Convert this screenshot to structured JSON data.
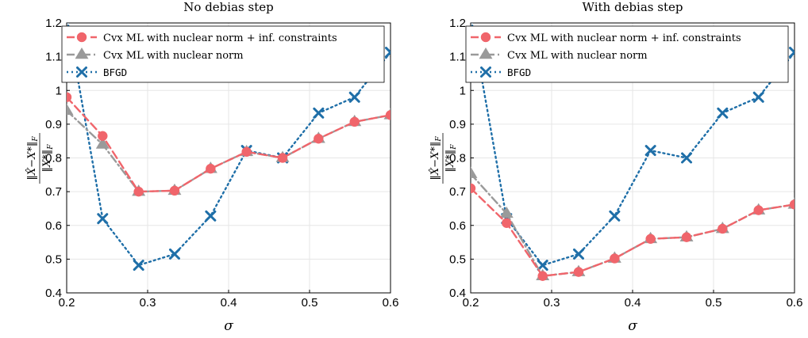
{
  "chart_data": [
    {
      "type": "line",
      "title": "No debias step",
      "xlabel": "σ",
      "ylabel": "‖X̂−X*‖F / ‖X*‖F",
      "xlim": [
        0.2,
        0.6
      ],
      "ylim": [
        0.4,
        1.2
      ],
      "xticks": [
        "0.2",
        "0.3",
        "0.4",
        "0.5",
        "0.6"
      ],
      "yticks": [
        "0.4",
        "0.5",
        "0.6",
        "0.7",
        "0.8",
        "0.9",
        "1",
        "1.2"
      ],
      "grid": true,
      "legend_position": "top-right",
      "x": [
        0.2,
        0.2444,
        0.2889,
        0.3333,
        0.3778,
        0.4222,
        0.4667,
        0.5111,
        0.5556,
        0.6
      ],
      "series": [
        {
          "name": "Cvx ML with nuclear norm + inf. constraints",
          "color": "#f0656b",
          "marker": "circle",
          "dash": "dashed",
          "values": [
            0.98,
            0.865,
            0.7,
            0.703,
            0.768,
            0.818,
            0.8,
            0.857,
            0.907,
            0.927
          ]
        },
        {
          "name": "Cvx ML with nuclear norm",
          "color": "#9a9a9a",
          "marker": "triangle",
          "dash": "dashdot",
          "values": [
            0.94,
            0.84,
            0.7,
            0.703,
            0.768,
            0.818,
            0.8,
            0.857,
            0.907,
            0.927
          ]
        },
        {
          "name": "BFGD",
          "color": "#1f6fa8",
          "marker": "x",
          "dash": "dotted",
          "values": [
            1.22,
            0.62,
            0.482,
            0.515,
            0.628,
            0.822,
            0.8,
            0.933,
            0.98,
            1.113
          ]
        }
      ]
    },
    {
      "type": "line",
      "title": "With debias step",
      "xlabel": "σ",
      "ylabel": "‖X̂−X*‖F / ‖X*‖F",
      "xlim": [
        0.2,
        0.6
      ],
      "ylim": [
        0.4,
        1.2
      ],
      "xticks": [
        "0.2",
        "0.3",
        "0.4",
        "0.5",
        "0.6"
      ],
      "yticks": [
        "0.4",
        "0.5",
        "0.6",
        "0.7",
        "0.8",
        "0.9",
        "1",
        "1.2"
      ],
      "grid": true,
      "legend_position": "top-right",
      "x": [
        0.2,
        0.2444,
        0.2889,
        0.3333,
        0.3778,
        0.4222,
        0.4667,
        0.5111,
        0.5556,
        0.6
      ],
      "series": [
        {
          "name": "Cvx ML with nuclear norm + inf. constraints",
          "color": "#f0656b",
          "marker": "circle",
          "dash": "dashed",
          "values": [
            0.71,
            0.607,
            0.45,
            0.462,
            0.502,
            0.56,
            0.565,
            0.59,
            0.645,
            0.662
          ]
        },
        {
          "name": "Cvx ML with nuclear norm",
          "color": "#9a9a9a",
          "marker": "triangle",
          "dash": "dashdot",
          "values": [
            0.753,
            0.635,
            0.45,
            0.462,
            0.502,
            0.56,
            0.565,
            0.59,
            0.645,
            0.662
          ]
        },
        {
          "name": "BFGD",
          "color": "#1f6fa8",
          "marker": "x",
          "dash": "dotted",
          "values": [
            1.22,
            0.62,
            0.482,
            0.515,
            0.628,
            0.822,
            0.8,
            0.933,
            0.98,
            1.113
          ]
        }
      ]
    }
  ],
  "ytick_extra": "1.1"
}
